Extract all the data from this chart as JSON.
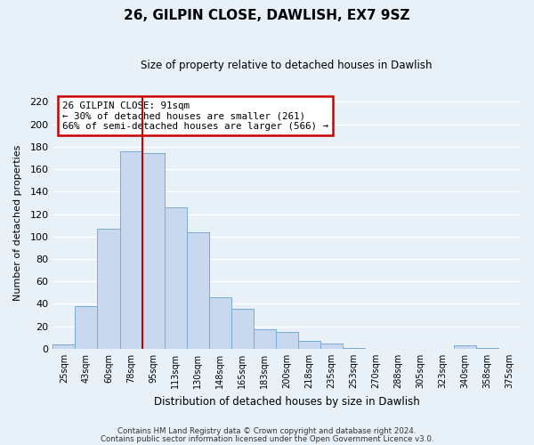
{
  "title": "26, GILPIN CLOSE, DAWLISH, EX7 9SZ",
  "subtitle": "Size of property relative to detached houses in Dawlish",
  "xlabel": "Distribution of detached houses by size in Dawlish",
  "ylabel": "Number of detached properties",
  "bar_color": "#c8d8ee",
  "bar_edge_color": "#7aabcf",
  "background_color": "#e8f0f8",
  "grid_color": "#ffffff",
  "bin_labels": [
    "25sqm",
    "43sqm",
    "60sqm",
    "78sqm",
    "95sqm",
    "113sqm",
    "130sqm",
    "148sqm",
    "165sqm",
    "183sqm",
    "200sqm",
    "218sqm",
    "235sqm",
    "253sqm",
    "270sqm",
    "288sqm",
    "305sqm",
    "323sqm",
    "340sqm",
    "358sqm",
    "375sqm"
  ],
  "bar_heights": [
    4,
    38,
    107,
    176,
    174,
    126,
    104,
    46,
    36,
    17,
    15,
    7,
    5,
    1,
    0,
    0,
    0,
    0,
    3,
    1,
    0
  ],
  "red_line_index": 4,
  "ylim": [
    0,
    225
  ],
  "yticks": [
    0,
    20,
    40,
    60,
    80,
    100,
    120,
    140,
    160,
    180,
    200,
    220
  ],
  "annotation_title": "26 GILPIN CLOSE: 91sqm",
  "annotation_line1": "← 30% of detached houses are smaller (261)",
  "annotation_line2": "66% of semi-detached houses are larger (566) →",
  "annotation_box_color": "#ffffff",
  "annotation_box_edge": "#cc0000",
  "footnote1": "Contains HM Land Registry data © Crown copyright and database right 2024.",
  "footnote2": "Contains public sector information licensed under the Open Government Licence v3.0."
}
